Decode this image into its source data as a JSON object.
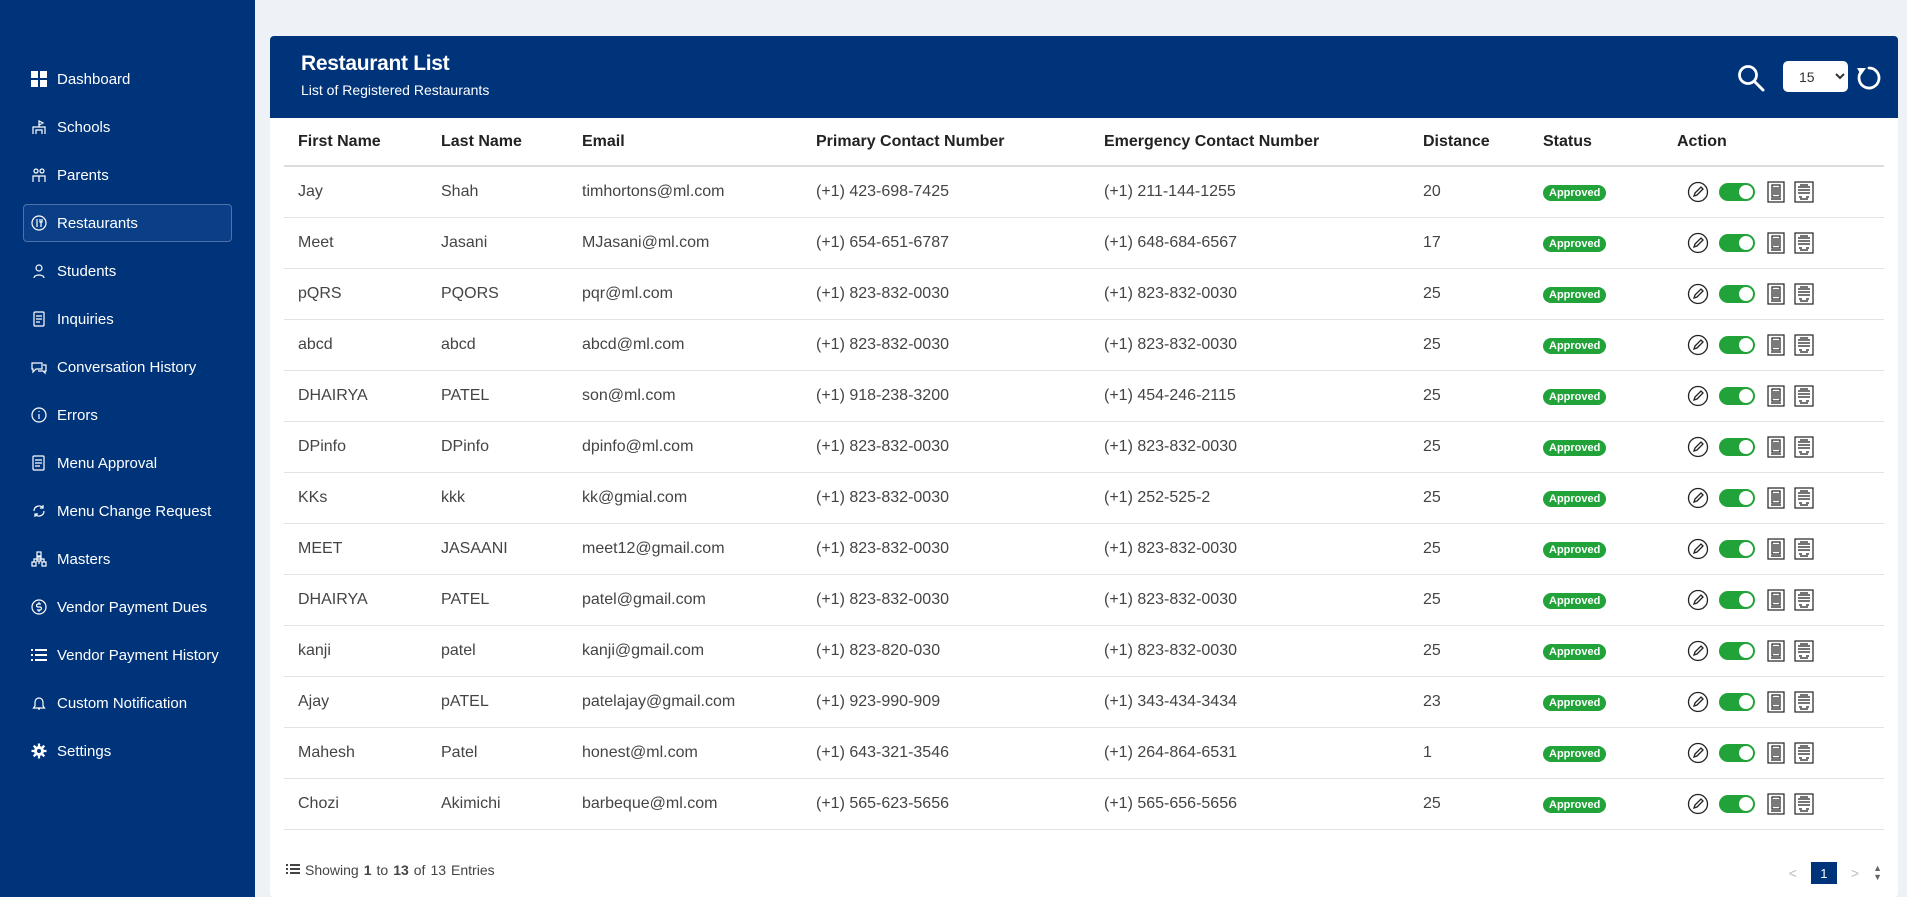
{
  "sidebar": {
    "items": [
      {
        "label": "Dashboard",
        "icon": "dashboard-icon"
      },
      {
        "label": "Schools",
        "icon": "school-icon"
      },
      {
        "label": "Parents",
        "icon": "parents-icon"
      },
      {
        "label": "Restaurants",
        "icon": "restaurant-icon",
        "active": true
      },
      {
        "label": "Students",
        "icon": "students-icon"
      },
      {
        "label": "Inquiries",
        "icon": "inquiries-icon"
      },
      {
        "label": "Conversation History",
        "icon": "conversation-icon"
      },
      {
        "label": "Errors",
        "icon": "info-icon"
      },
      {
        "label": "Menu Approval",
        "icon": "menu-approval-icon"
      },
      {
        "label": "Menu Change Request",
        "icon": "menu-change-icon"
      },
      {
        "label": "Masters",
        "icon": "masters-icon"
      },
      {
        "label": "Vendor Payment Dues",
        "icon": "payment-dues-icon"
      },
      {
        "label": "Vendor Payment History",
        "icon": "list-icon"
      },
      {
        "label": "Custom Notification",
        "icon": "bell-icon"
      },
      {
        "label": "Settings",
        "icon": "gear-icon"
      }
    ]
  },
  "header": {
    "title": "Restaurant List",
    "subtitle": "List of Registered Restaurants",
    "page_size": "15"
  },
  "table": {
    "columns": [
      "First Name",
      "Last Name",
      "Email",
      "Primary Contact Number",
      "Emergency Contact Number",
      "Distance",
      "Status",
      "Action"
    ],
    "rows": [
      [
        "Jay",
        "Shah",
        "timhortons@ml.com",
        "(+1) 423-698-7425",
        "(+1) 211-144-1255",
        "20",
        "Approved"
      ],
      [
        "Meet",
        "Jasani",
        "MJasani@ml.com",
        "(+1) 654-651-6787",
        "(+1) 648-684-6567",
        "17",
        "Approved"
      ],
      [
        "pQRS",
        "PQORS",
        "pqr@ml.com",
        "(+1) 823-832-0030",
        "(+1) 823-832-0030",
        "25",
        "Approved"
      ],
      [
        "abcd",
        "abcd",
        "abcd@ml.com",
        "(+1) 823-832-0030",
        "(+1) 823-832-0030",
        "25",
        "Approved"
      ],
      [
        "DHAIRYA",
        "PATEL",
        "son@ml.com",
        "(+1) 918-238-3200",
        "(+1) 454-246-2115",
        "25",
        "Approved"
      ],
      [
        "DPinfo",
        "DPinfo",
        "dpinfo@ml.com",
        "(+1) 823-832-0030",
        "(+1) 823-832-0030",
        "25",
        "Approved"
      ],
      [
        "KKs",
        "kkk",
        "kk@gmial.com",
        "(+1) 823-832-0030",
        "(+1) 252-525-2",
        "25",
        "Approved"
      ],
      [
        "MEET",
        "JASAANI",
        "meet12@gmail.com",
        "(+1) 823-832-0030",
        "(+1) 823-832-0030",
        "25",
        "Approved"
      ],
      [
        "DHAIRYA",
        "PATEL",
        "patel@gmail.com",
        "(+1) 823-832-0030",
        "(+1) 823-832-0030",
        "25",
        "Approved"
      ],
      [
        "kanji",
        "patel",
        "kanji@gmail.com",
        "(+1) 823-820-030",
        "(+1) 823-832-0030",
        "25",
        "Approved"
      ],
      [
        "Ajay",
        "pATEL",
        "patelajay@gmail.com",
        "(+1) 923-990-909",
        "(+1) 343-434-3434",
        "23",
        "Approved"
      ],
      [
        "Mahesh",
        "Patel",
        "honest@ml.com",
        "(+1) 643-321-3546",
        "(+1) 264-864-6531",
        "1",
        "Approved"
      ],
      [
        "Chozi",
        "Akimichi",
        "barbeque@ml.com",
        "(+1) 565-623-5656",
        "(+1) 565-656-5656",
        "25",
        "Approved"
      ]
    ]
  },
  "footer": {
    "showing": "Showing",
    "from": "1",
    "to_word": "to",
    "to": "13",
    "of_word": "of",
    "total": "13",
    "entries_word": "Entries",
    "prev": "<",
    "current_page": "1",
    "next": ">"
  },
  "colors": {
    "primary": "#00347a",
    "approved": "#22a33a"
  }
}
